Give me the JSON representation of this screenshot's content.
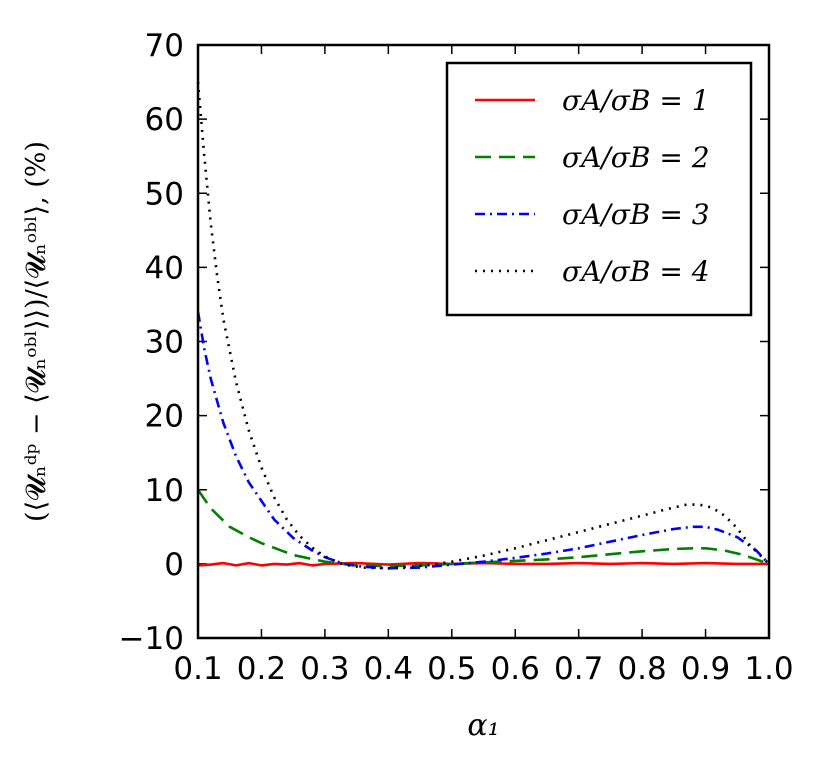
{
  "chart_data": {
    "type": "line",
    "xlabel": "α₁",
    "ylabel": "(⟨𝓤ₙᵈᵖ − ⟨𝓤ₙᵒᵇˡ⟩⟩)/⟨𝓤ₙᵒᵇˡ⟩, (%)",
    "xlim": [
      0.1,
      1.0
    ],
    "ylim": [
      -10,
      70
    ],
    "xticks": [
      0.1,
      0.2,
      0.3,
      0.4,
      0.5,
      0.6,
      0.7,
      0.8,
      0.9,
      1.0
    ],
    "xtick_labels": [
      "0.1",
      "0.2",
      "0.3",
      "0.4",
      "0.5",
      "0.6",
      "0.7",
      "0.8",
      "0.9",
      "1.0"
    ],
    "yticks": [
      -10,
      0,
      10,
      20,
      30,
      40,
      50,
      60,
      70
    ],
    "ytick_labels": [
      "−10",
      "0",
      "10",
      "20",
      "30",
      "40",
      "50",
      "60",
      "70"
    ],
    "legend_position": "top-right",
    "series": [
      {
        "name": "σA/σB = 1",
        "color": "#ff0000",
        "dash": "solid",
        "x": [
          0.1,
          0.12,
          0.14,
          0.16,
          0.18,
          0.2,
          0.22,
          0.24,
          0.26,
          0.28,
          0.3,
          0.35,
          0.4,
          0.45,
          0.5,
          0.55,
          0.6,
          0.65,
          0.7,
          0.75,
          0.8,
          0.85,
          0.9,
          0.95,
          1.0
        ],
        "y": [
          -0.2,
          -0.1,
          0.1,
          -0.2,
          0.1,
          -0.2,
          0.0,
          -0.1,
          0.1,
          -0.2,
          0.0,
          0.1,
          -0.1,
          0.1,
          0.0,
          0.1,
          0.0,
          0.0,
          0.1,
          0.0,
          0.1,
          0.0,
          0.1,
          0.0,
          0.0
        ]
      },
      {
        "name": "σA/σB = 2",
        "color": "#007f00",
        "dash": "long-dash",
        "x": [
          0.1,
          0.12,
          0.15,
          0.18,
          0.2,
          0.25,
          0.3,
          0.35,
          0.4,
          0.45,
          0.5,
          0.55,
          0.6,
          0.65,
          0.7,
          0.75,
          0.8,
          0.85,
          0.88,
          0.9,
          0.93,
          0.96,
          1.0
        ],
        "y": [
          10.0,
          7.5,
          5.0,
          3.6,
          2.8,
          1.2,
          0.3,
          -0.2,
          -0.3,
          -0.2,
          0.0,
          0.2,
          0.4,
          0.6,
          0.9,
          1.3,
          1.7,
          2.0,
          2.1,
          2.1,
          1.8,
          1.2,
          0.0
        ]
      },
      {
        "name": "σA/σB = 3",
        "color": "#0000ff",
        "dash": "dash-dot",
        "x": [
          0.1,
          0.11,
          0.12,
          0.14,
          0.16,
          0.18,
          0.2,
          0.22,
          0.25,
          0.28,
          0.3,
          0.33,
          0.36,
          0.4,
          0.45,
          0.5,
          0.55,
          0.6,
          0.65,
          0.7,
          0.75,
          0.8,
          0.85,
          0.88,
          0.9,
          0.92,
          0.95,
          0.98,
          1.0
        ],
        "y": [
          34.0,
          29.0,
          25.0,
          19.0,
          14.5,
          11.0,
          8.5,
          6.0,
          3.5,
          1.8,
          0.9,
          0.0,
          -0.4,
          -0.6,
          -0.5,
          -0.1,
          0.3,
          0.8,
          1.4,
          2.1,
          3.0,
          3.9,
          4.7,
          5.0,
          5.0,
          4.6,
          3.6,
          1.8,
          0.0
        ]
      },
      {
        "name": "σA/σB = 4",
        "color": "#000000",
        "dash": "dotted",
        "x": [
          0.1,
          0.11,
          0.12,
          0.13,
          0.14,
          0.16,
          0.18,
          0.2,
          0.22,
          0.24,
          0.26,
          0.28,
          0.3,
          0.33,
          0.36,
          0.4,
          0.43,
          0.46,
          0.5,
          0.55,
          0.6,
          0.65,
          0.7,
          0.75,
          0.8,
          0.84,
          0.87,
          0.89,
          0.91,
          0.93,
          0.95,
          0.97,
          1.0
        ],
        "y": [
          65.0,
          55.0,
          46.0,
          39.0,
          33.0,
          24.5,
          18.0,
          13.0,
          9.0,
          6.0,
          3.8,
          2.2,
          1.0,
          -0.1,
          -0.5,
          -0.6,
          -0.4,
          -0.2,
          0.3,
          1.1,
          2.1,
          3.2,
          4.3,
          5.4,
          6.5,
          7.4,
          8.0,
          8.0,
          7.6,
          6.5,
          4.8,
          2.5,
          0.0
        ]
      }
    ]
  }
}
